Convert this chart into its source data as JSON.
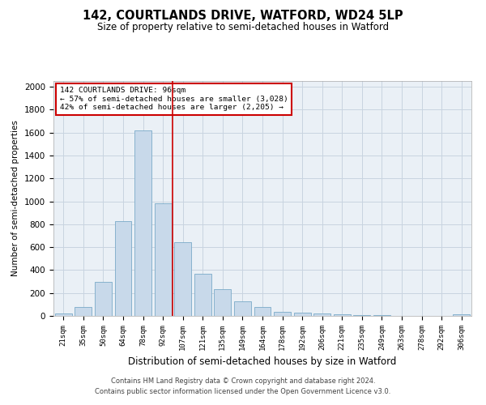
{
  "title": "142, COURTLANDS DRIVE, WATFORD, WD24 5LP",
  "subtitle": "Size of property relative to semi-detached houses in Watford",
  "xlabel": "Distribution of semi-detached houses by size in Watford",
  "ylabel": "Number of semi-detached properties",
  "footer1": "Contains HM Land Registry data © Crown copyright and database right 2024.",
  "footer2": "Contains public sector information licensed under the Open Government Licence v3.0.",
  "annotation_title": "142 COURTLANDS DRIVE: 96sqm",
  "annotation_line1": "← 57% of semi-detached houses are smaller (3,028)",
  "annotation_line2": "42% of semi-detached houses are larger (2,205) →",
  "categories": [
    "21sqm",
    "35sqm",
    "50sqm",
    "64sqm",
    "78sqm",
    "92sqm",
    "107sqm",
    "121sqm",
    "135sqm",
    "149sqm",
    "164sqm",
    "178sqm",
    "192sqm",
    "206sqm",
    "221sqm",
    "235sqm",
    "249sqm",
    "263sqm",
    "278sqm",
    "292sqm",
    "306sqm"
  ],
  "values": [
    20,
    80,
    300,
    830,
    1620,
    980,
    640,
    370,
    230,
    130,
    75,
    35,
    30,
    20,
    15,
    10,
    5,
    3,
    2,
    1,
    15
  ],
  "bar_color": "#c8d9ea",
  "bar_edge_color": "#7aaac8",
  "vline_color": "#cc0000",
  "vline_x": 5.5,
  "annotation_box_color": "#cc0000",
  "grid_color": "#c8d4e0",
  "background_color": "#eaf0f6",
  "ylim": [
    0,
    2050
  ],
  "yticks": [
    0,
    200,
    400,
    600,
    800,
    1000,
    1200,
    1400,
    1600,
    1800,
    2000
  ]
}
